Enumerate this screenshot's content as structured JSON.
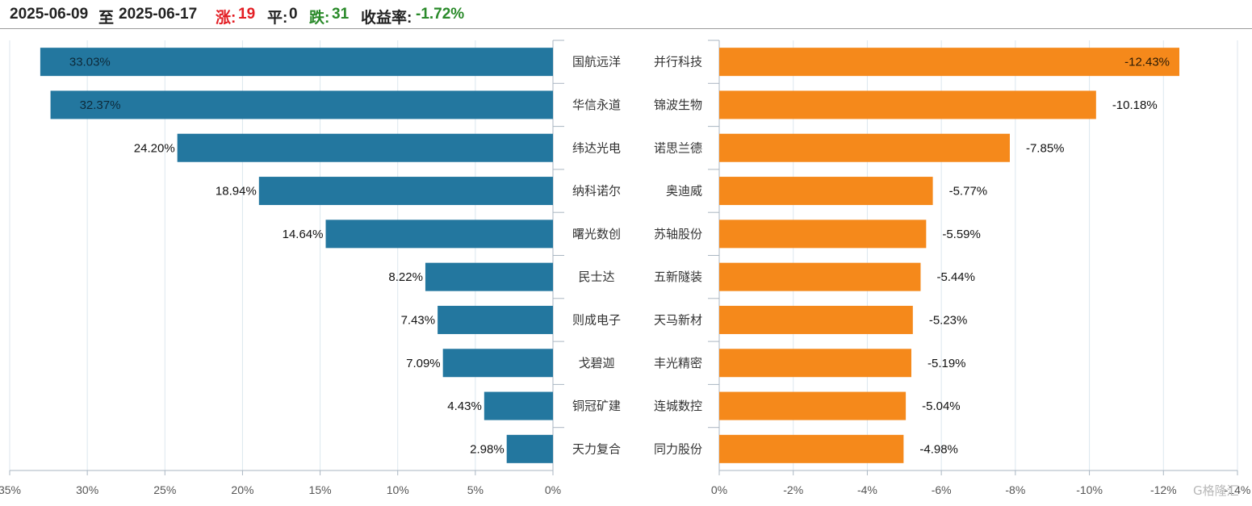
{
  "header": {
    "start_date": "2025-06-09",
    "to_label": "至",
    "end_date": "2025-06-17",
    "up_label": "涨:",
    "up_count": "19",
    "flat_label": "平:",
    "flat_count": "0",
    "down_label": "跌:",
    "down_count": "31",
    "return_label": "收益率:",
    "return_value": "-1.72%"
  },
  "colors": {
    "gainers": "#23779f",
    "losers": "#f5891b",
    "up_text": "#e31e24",
    "down_text": "#2a8a2a",
    "grid": "#dce6ee"
  },
  "watermark": "格隆汇",
  "chart_data": [
    {
      "type": "bar",
      "orientation": "horizontal",
      "direction": "right-to-left",
      "categories": [
        "国航远洋",
        "华信永道",
        "纬达光电",
        "纳科诺尔",
        "曙光数创",
        "民士达",
        "则成电子",
        "戈碧迦",
        "铜冠矿建",
        "天力复合"
      ],
      "values": [
        33.03,
        32.37,
        24.2,
        18.94,
        14.64,
        8.22,
        7.43,
        7.09,
        4.43,
        2.98
      ],
      "data_labels": [
        "33.03%",
        "32.37%",
        "24.20%",
        "18.94%",
        "14.64%",
        "8.22%",
        "7.43%",
        "7.09%",
        "4.43%",
        "2.98%"
      ],
      "xlim": [
        0,
        35
      ],
      "ticks": [
        "35%",
        "30%",
        "25%",
        "20%",
        "15%",
        "10%",
        "5%",
        "0%"
      ],
      "grid": true
    },
    {
      "type": "bar",
      "orientation": "horizontal",
      "direction": "left-to-right",
      "categories": [
        "并行科技",
        "锦波生物",
        "诺思兰德",
        "奥迪威",
        "苏轴股份",
        "五新隧装",
        "天马新材",
        "丰光精密",
        "连城数控",
        "同力股份"
      ],
      "values": [
        -12.43,
        -10.18,
        -7.85,
        -5.77,
        -5.59,
        -5.44,
        -5.23,
        -5.19,
        -5.04,
        -4.98
      ],
      "data_labels": [
        "-12.43%",
        "-10.18%",
        "-7.85%",
        "-5.77%",
        "-5.59%",
        "-5.44%",
        "-5.23%",
        "-5.19%",
        "-5.04%",
        "-4.98%"
      ],
      "xlim": [
        0,
        -14
      ],
      "ticks": [
        "0%",
        "-2%",
        "-4%",
        "-6%",
        "-8%",
        "-10%",
        "-12%",
        "-14%"
      ],
      "grid": true
    }
  ]
}
